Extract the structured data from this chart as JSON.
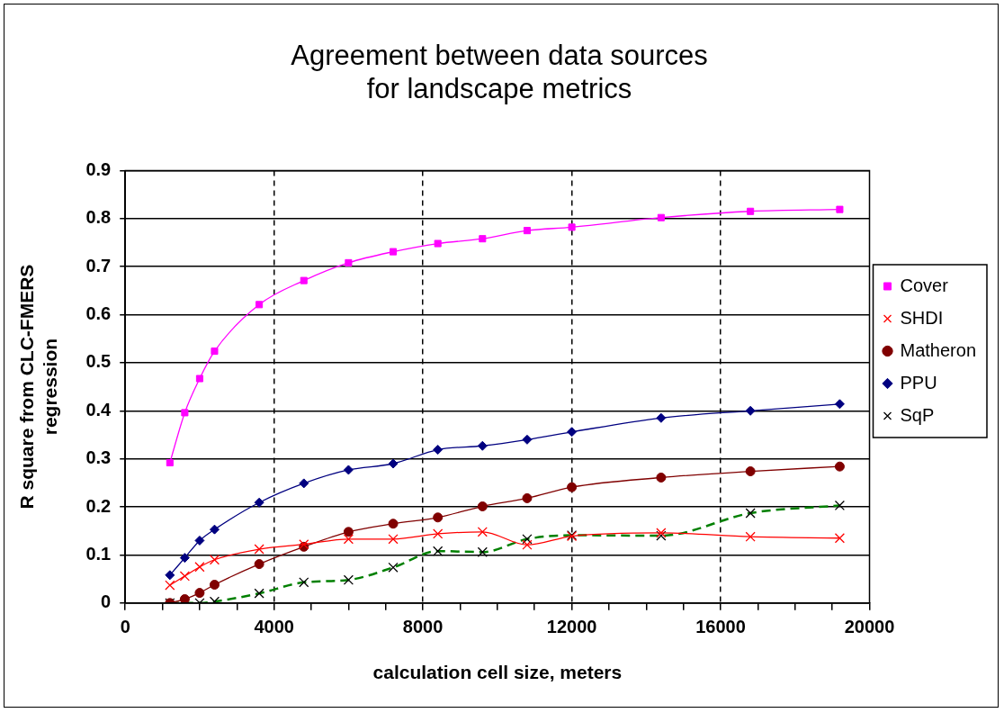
{
  "chart_data": {
    "type": "line",
    "title": "Agreement between data sources\nfor landscape metrics",
    "xlabel": "calculation cell size, meters",
    "ylabel": "R square from CLC-FMERS\nregression",
    "x": [
      1200,
      1600,
      2000,
      2400,
      3600,
      4800,
      6000,
      7200,
      8400,
      9600,
      10800,
      12000,
      14400,
      16800,
      19200
    ],
    "xlim": [
      0,
      20000
    ],
    "xticks": [
      0,
      {
        "value": 1000,
        "label": null
      },
      {
        "value": 2000,
        "label": null
      },
      {
        "value": 3000,
        "label": null
      },
      4000,
      {
        "value": 5000,
        "label": null
      },
      {
        "value": 6000,
        "label": null
      },
      {
        "value": 7000,
        "label": null
      },
      8000,
      {
        "value": 9000,
        "label": null
      },
      {
        "value": 10000,
        "label": null
      },
      {
        "value": 11000,
        "label": null
      },
      12000,
      {
        "value": 13000,
        "label": null
      },
      {
        "value": 14000,
        "label": null
      },
      {
        "value": 15000,
        "label": null
      },
      16000,
      {
        "value": 17000,
        "label": null
      },
      {
        "value": 18000,
        "label": null
      },
      {
        "value": 19000,
        "label": null
      },
      20000
    ],
    "ylim": [
      0,
      0.9
    ],
    "yticks": [
      0,
      0.1,
      0.2,
      0.3,
      0.4,
      0.5,
      0.6,
      0.7,
      0.8,
      0.9
    ],
    "grid": true,
    "legend": "right",
    "series": [
      {
        "name": "Cover",
        "color": "#ff00ff",
        "marker": "square",
        "line_style": "solid",
        "values": [
          0.292,
          0.396,
          0.467,
          0.524,
          0.621,
          0.671,
          0.708,
          0.731,
          0.748,
          0.758,
          0.775,
          0.782,
          0.802,
          0.815,
          0.819
        ]
      },
      {
        "name": "SHDI",
        "color": "#ff0000",
        "marker": "cross",
        "line_style": "solid",
        "values": [
          0.037,
          0.056,
          0.075,
          0.09,
          0.112,
          0.122,
          0.133,
          0.133,
          0.144,
          0.148,
          0.121,
          0.139,
          0.146,
          0.138,
          0.135
        ]
      },
      {
        "name": "Matheron",
        "color": "#800000",
        "marker": "circle",
        "line_style": "solid",
        "values": [
          0.0,
          0.008,
          0.021,
          0.038,
          0.081,
          0.117,
          0.148,
          0.165,
          0.178,
          0.201,
          0.218,
          0.241,
          0.261,
          0.274,
          0.284
        ]
      },
      {
        "name": "PPU",
        "color": "#000080",
        "marker": "diamond",
        "line_style": "solid",
        "values": [
          0.058,
          0.094,
          0.13,
          0.153,
          0.209,
          0.249,
          0.277,
          0.29,
          0.319,
          0.327,
          0.34,
          0.356,
          0.385,
          0.4,
          0.414
        ]
      },
      {
        "name": "SqP",
        "color": "#008000",
        "marker": "cross",
        "line_style": "dashed",
        "values": [
          0.0,
          0.0,
          0.0,
          0.003,
          0.02,
          0.043,
          0.048,
          0.074,
          0.108,
          0.106,
          0.133,
          0.141,
          0.14,
          0.187,
          0.203
        ]
      }
    ]
  }
}
